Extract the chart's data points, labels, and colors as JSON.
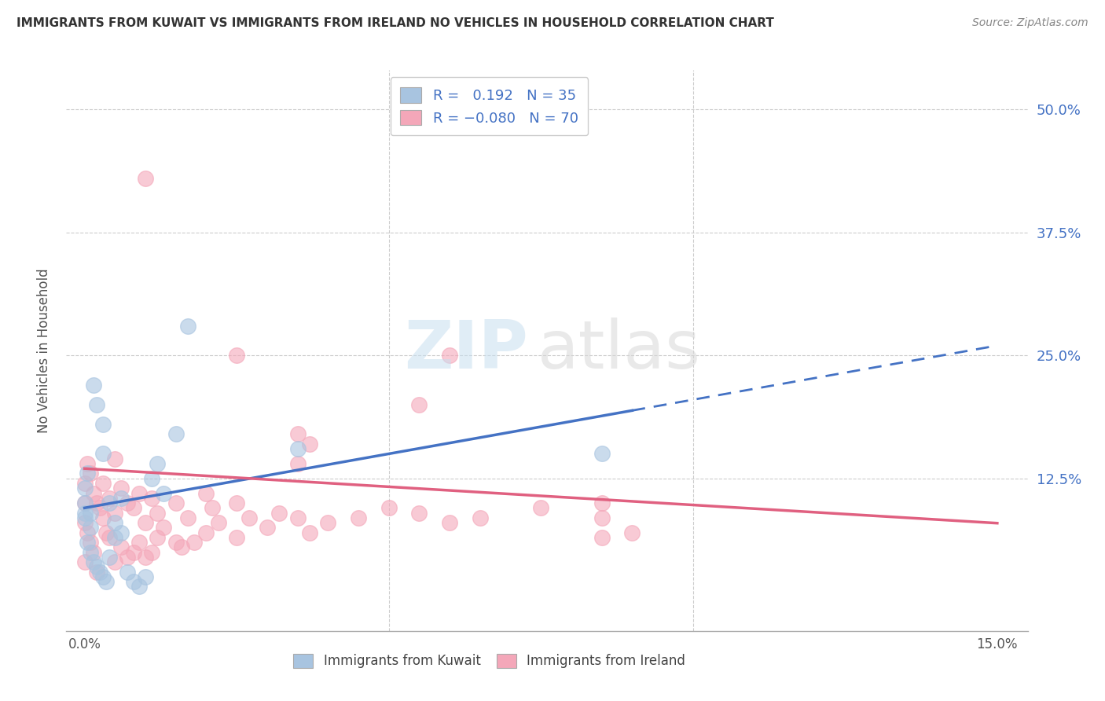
{
  "title": "IMMIGRANTS FROM KUWAIT VS IMMIGRANTS FROM IRELAND NO VEHICLES IN HOUSEHOLD CORRELATION CHART",
  "source": "Source: ZipAtlas.com",
  "ylabel": "No Vehicles in Household",
  "y_ticks": [
    0.0,
    12.5,
    25.0,
    37.5,
    50.0
  ],
  "y_tick_labels_right": [
    "12.5%",
    "25.0%",
    "37.5%",
    "50.0%"
  ],
  "xlim": [
    -0.3,
    15.5
  ],
  "ylim": [
    -3.0,
    54.0
  ],
  "kuwait_R": 0.192,
  "kuwait_N": 35,
  "ireland_R": -0.08,
  "ireland_N": 70,
  "kuwait_color": "#a8c4e0",
  "ireland_color": "#f4a7b9",
  "kuwait_line_color": "#4472c4",
  "ireland_line_color": "#e06080",
  "kuwait_line_solid_end": 9.0,
  "kuwait_line_dash_start": 9.0,
  "kuwait_line_dash_end": 15.0,
  "ireland_line_start": 0.0,
  "ireland_line_end": 15.0,
  "kuwait_intercept": 9.5,
  "kuwait_slope": 1.1,
  "ireland_intercept": 13.5,
  "ireland_slope": -0.37,
  "kuwait_scatter_x": [
    0.0,
    0.05,
    0.1,
    0.15,
    0.2,
    0.25,
    0.3,
    0.35,
    0.4,
    0.5,
    0.6,
    0.7,
    0.8,
    0.9,
    1.0,
    1.1,
    1.2,
    1.3,
    1.5,
    1.7,
    0.0,
    0.0,
    0.0,
    0.05,
    0.1,
    0.1,
    0.15,
    0.2,
    0.3,
    0.3,
    0.4,
    0.5,
    0.6,
    3.5,
    8.5
  ],
  "kuwait_scatter_y": [
    8.5,
    6.0,
    5.0,
    4.0,
    3.5,
    3.0,
    2.5,
    2.0,
    4.5,
    6.5,
    7.0,
    3.0,
    2.0,
    1.5,
    2.5,
    12.5,
    14.0,
    11.0,
    17.0,
    28.0,
    10.0,
    9.0,
    11.5,
    13.0,
    7.5,
    9.0,
    22.0,
    20.0,
    18.0,
    15.0,
    10.0,
    8.0,
    10.5,
    15.5,
    15.0
  ],
  "ireland_scatter_x": [
    0.0,
    0.0,
    0.0,
    0.0,
    0.05,
    0.05,
    0.1,
    0.1,
    0.15,
    0.15,
    0.2,
    0.2,
    0.25,
    0.3,
    0.3,
    0.35,
    0.4,
    0.4,
    0.5,
    0.5,
    0.5,
    0.6,
    0.6,
    0.7,
    0.7,
    0.8,
    0.8,
    0.9,
    0.9,
    1.0,
    1.0,
    1.1,
    1.1,
    1.2,
    1.2,
    1.3,
    1.5,
    1.5,
    1.6,
    1.7,
    1.8,
    2.0,
    2.0,
    2.1,
    2.2,
    2.5,
    2.5,
    2.7,
    3.0,
    3.2,
    3.5,
    3.7,
    4.0,
    4.5,
    5.0,
    5.5,
    6.0,
    6.5,
    7.5,
    8.5,
    1.0,
    2.5,
    5.5,
    6.0,
    8.5,
    9.0,
    3.5,
    3.5,
    3.7,
    8.5
  ],
  "ireland_scatter_y": [
    12.0,
    8.0,
    10.0,
    4.0,
    14.0,
    7.0,
    13.0,
    6.0,
    11.0,
    5.0,
    10.0,
    3.0,
    9.5,
    8.5,
    12.0,
    7.0,
    6.5,
    10.5,
    4.0,
    9.0,
    14.5,
    5.5,
    11.5,
    4.5,
    10.0,
    5.0,
    9.5,
    6.0,
    11.0,
    4.5,
    8.0,
    5.0,
    10.5,
    6.5,
    9.0,
    7.5,
    6.0,
    10.0,
    5.5,
    8.5,
    6.0,
    7.0,
    11.0,
    9.5,
    8.0,
    6.5,
    10.0,
    8.5,
    7.5,
    9.0,
    8.5,
    7.0,
    8.0,
    8.5,
    9.5,
    9.0,
    8.0,
    8.5,
    9.5,
    10.0,
    43.0,
    25.0,
    20.0,
    25.0,
    8.5,
    7.0,
    17.0,
    14.0,
    16.0,
    6.5
  ]
}
